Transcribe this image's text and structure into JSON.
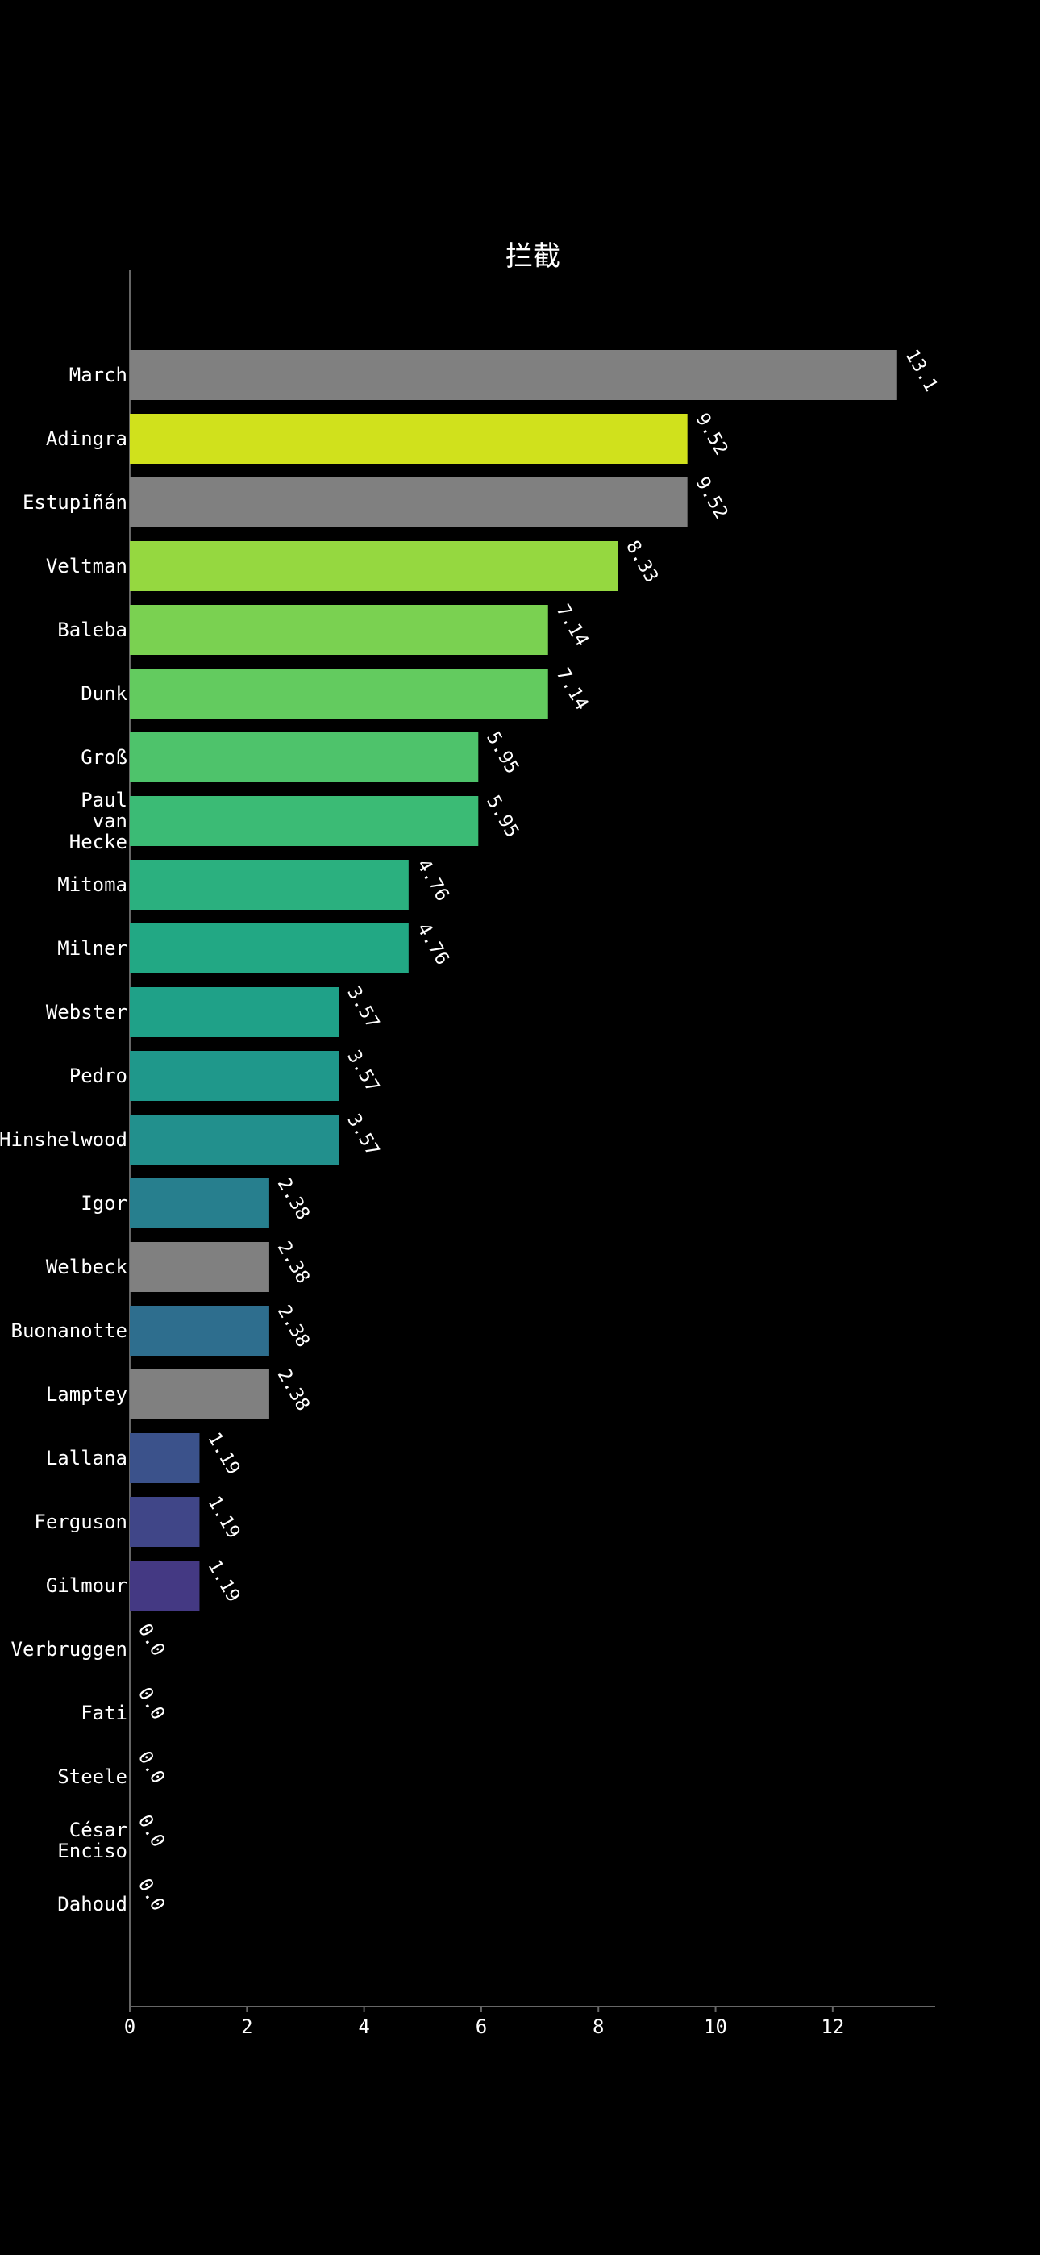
{
  "chart_data": {
    "type": "bar",
    "orientation": "horizontal",
    "title": "拦截",
    "xlabel": "",
    "ylabel": "",
    "xlim": [
      0,
      13.75
    ],
    "xticks": [
      0,
      2,
      4,
      6,
      8,
      10,
      12
    ],
    "grid": false,
    "background": "#000000",
    "categories": [
      [
        "March"
      ],
      [
        "Adingra"
      ],
      [
        "Estupiñán"
      ],
      [
        "Veltman"
      ],
      [
        "Baleba"
      ],
      [
        "Dunk"
      ],
      [
        "Groß"
      ],
      [
        "Paul",
        "van",
        "Hecke"
      ],
      [
        "Mitoma"
      ],
      [
        "Milner"
      ],
      [
        "Webster"
      ],
      [
        "Pedro"
      ],
      [
        "Hinshelwood"
      ],
      [
        "Igor"
      ],
      [
        "Welbeck"
      ],
      [
        "Buonanotte"
      ],
      [
        "Lamptey"
      ],
      [
        "Lallana"
      ],
      [
        "Ferguson"
      ],
      [
        "Gilmour"
      ],
      [
        "Verbruggen"
      ],
      [
        "Fati"
      ],
      [
        "Steele"
      ],
      [
        "César",
        "Enciso"
      ],
      [
        "Dahoud"
      ]
    ],
    "values": [
      13.1,
      9.52,
      9.52,
      8.33,
      7.14,
      7.14,
      5.95,
      5.95,
      4.76,
      4.76,
      3.57,
      3.57,
      3.57,
      2.38,
      2.38,
      2.38,
      2.38,
      1.19,
      1.19,
      1.19,
      0.0,
      0.0,
      0.0,
      0.0,
      0.0
    ],
    "value_labels": [
      "13.1",
      "9.52",
      "9.52",
      "8.33",
      "7.14",
      "7.14",
      "5.95",
      "5.95",
      "4.76",
      "4.76",
      "3.57",
      "3.57",
      "3.57",
      "2.38",
      "2.38",
      "2.38",
      "2.38",
      "1.19",
      "1.19",
      "1.19",
      "0.0",
      "0.0",
      "0.0",
      "0.0",
      "0.0"
    ],
    "colors": [
      "#808080",
      "#d0e11c",
      "#808080",
      "#95d840",
      "#7ad151",
      "#63cb5f",
      "#4ec36b",
      "#3bbb75",
      "#2bb07f",
      "#22a884",
      "#1fa188",
      "#1f988b",
      "#22908d",
      "#277f8e",
      "#808080",
      "#2e6e8e",
      "#808080",
      "#3b528b",
      "#404688",
      "#443983",
      "#472d7b",
      "#481f70",
      "#481467",
      "#46075a",
      "#440154"
    ]
  }
}
